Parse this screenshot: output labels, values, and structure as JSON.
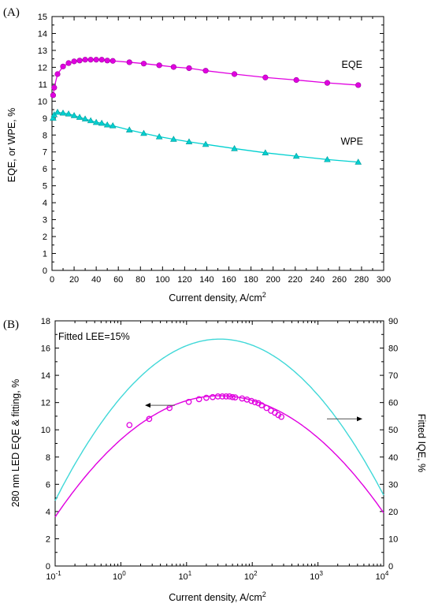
{
  "chart_data": [
    {
      "panel_label": "(A)",
      "type": "line",
      "xlabel": "Current density, A/cm",
      "xlabel_sup": "2",
      "ylabel": "EQE, or WPE, %",
      "xlim": [
        0,
        300
      ],
      "ylim": [
        0,
        15
      ],
      "xticks": [
        "0",
        "20",
        "40",
        "60",
        "80",
        "100",
        "120",
        "140",
        "160",
        "180",
        "200",
        "220",
        "240",
        "260",
        "280",
        "300"
      ],
      "yticks": [
        "0",
        "1",
        "2",
        "3",
        "4",
        "5",
        "6",
        "7",
        "8",
        "9",
        "10",
        "11",
        "12",
        "13",
        "14",
        "15"
      ],
      "series": [
        {
          "name": "EQE",
          "color": "#e000e0",
          "marker": "circle",
          "x": [
            1,
            2,
            5,
            10,
            15,
            20,
            25,
            30,
            35,
            40,
            45,
            50,
            55,
            70,
            83,
            97,
            110,
            124,
            139,
            165,
            193,
            221,
            249,
            277
          ],
          "y": [
            10.35,
            10.8,
            11.6,
            12.05,
            12.25,
            12.35,
            12.4,
            12.45,
            12.45,
            12.45,
            12.45,
            12.4,
            12.38,
            12.3,
            12.22,
            12.12,
            12.02,
            11.95,
            11.8,
            11.6,
            11.4,
            11.25,
            11.08,
            10.95
          ]
        },
        {
          "name": "WPE",
          "color": "#00d0d0",
          "marker": "triangle",
          "x": [
            1,
            2,
            5,
            10,
            15,
            20,
            25,
            30,
            35,
            40,
            45,
            50,
            55,
            70,
            83,
            97,
            110,
            124,
            139,
            165,
            193,
            221,
            249,
            277
          ],
          "y": [
            9.0,
            9.2,
            9.35,
            9.3,
            9.25,
            9.15,
            9.05,
            8.95,
            8.85,
            8.75,
            8.7,
            8.6,
            8.55,
            8.3,
            8.1,
            7.9,
            7.75,
            7.6,
            7.45,
            7.2,
            6.95,
            6.75,
            6.55,
            6.4
          ]
        }
      ]
    },
    {
      "panel_label": "(B)",
      "type": "line",
      "xlabel": "Current density, A/cm",
      "xlabel_sup": "2",
      "ylabel": "280 nm LED EQE & fitting, %",
      "y2label": "Fitted IQE, %",
      "xscale": "log",
      "xlim": [
        0.1,
        10000
      ],
      "ylim": [
        0,
        18
      ],
      "y2lim": [
        0,
        90
      ],
      "xtick_values": [
        0.1,
        1,
        10,
        100,
        1000,
        10000
      ],
      "xtick_exps": [
        "-1",
        "0",
        "1",
        "2",
        "3",
        "4"
      ],
      "xtick_base": "10",
      "yticks": [
        "0",
        "2",
        "4",
        "6",
        "8",
        "10",
        "12",
        "14",
        "16",
        "18"
      ],
      "y2ticks": [
        "0",
        "10",
        "20",
        "30",
        "40",
        "50",
        "60",
        "70",
        "80",
        "90"
      ],
      "annotation": "Fitted LEE=15%",
      "series": [
        {
          "name": "EQE",
          "color": "#e000e0",
          "marker": "circle-open",
          "x": [
            1.35,
            2.7,
            5.5,
            10.8,
            15.5,
            20,
            25,
            30,
            35,
            40,
            45,
            50,
            55,
            70,
            83,
            97,
            110,
            124,
            139,
            165,
            193,
            221,
            249,
            277
          ],
          "y": [
            10.35,
            10.8,
            11.6,
            12.05,
            12.25,
            12.35,
            12.4,
            12.45,
            12.45,
            12.45,
            12.45,
            12.4,
            12.38,
            12.3,
            12.22,
            12.12,
            12.02,
            11.95,
            11.8,
            11.6,
            11.4,
            11.25,
            11.08,
            10.95
          ]
        },
        {
          "name": "EQE fitting",
          "color": "#e000e0",
          "marker": "none",
          "peak_x": 32,
          "peak_y": 12.5,
          "y_at_0_1": 3.6,
          "y_at_10000": 3.9
        },
        {
          "name": "IQE",
          "axis": "right",
          "color": "#40d8d8",
          "marker": "none",
          "peak_x": 32,
          "peak_y": 83.3,
          "y_at_0_1": 24,
          "y_at_10000": 26
        }
      ]
    }
  ]
}
